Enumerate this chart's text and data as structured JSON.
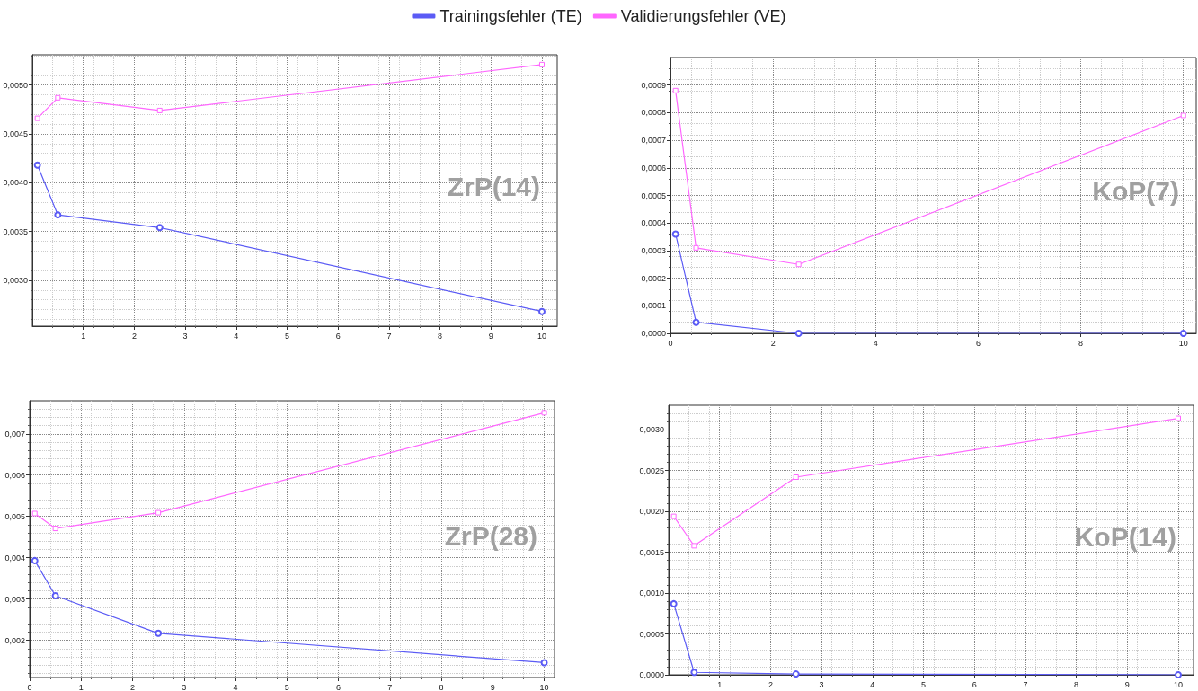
{
  "chart_data": [
    {
      "type": "line",
      "title": "ZrP(14)",
      "x": [
        0.1,
        0.5,
        2.5,
        10
      ],
      "legend": "top",
      "grid": true,
      "xlim": [
        0,
        10.3
      ],
      "xticks": [
        1,
        2,
        3,
        4,
        5,
        6,
        7,
        8,
        9,
        10
      ],
      "ylim": [
        0.00253,
        0.00531
      ],
      "yticks": [
        {
          "value": 0.003,
          "label": "0,0030"
        },
        {
          "value": 0.0035,
          "label": "0,0035"
        },
        {
          "value": 0.004,
          "label": "0,0040"
        },
        {
          "value": 0.0045,
          "label": "0,0045"
        },
        {
          "value": 0.005,
          "label": "0,0050"
        }
      ],
      "series": [
        {
          "name": "Trainingsfehler (TE)",
          "color": "#5b5bf5",
          "marker": "circle",
          "values": [
            0.00418,
            0.00367,
            0.00354,
            0.00268
          ]
        },
        {
          "name": "Validierungsfehler (VE)",
          "color": "#ff66ff",
          "marker": "square",
          "values": [
            0.00466,
            0.00487,
            0.00474,
            0.00521
          ]
        }
      ]
    },
    {
      "type": "line",
      "title": "KoP(7)",
      "x": [
        0.1,
        0.5,
        2.5,
        10
      ],
      "grid": true,
      "xlim": [
        0,
        10.25
      ],
      "xticks": [
        0,
        2,
        4,
        6,
        8,
        10
      ],
      "ylim": [
        0,
        0.001
      ],
      "yticks": [
        {
          "value": 0,
          "label": "0,0000"
        },
        {
          "value": 0.0001,
          "label": "0,0001"
        },
        {
          "value": 0.0002,
          "label": "0,0002"
        },
        {
          "value": 0.0003,
          "label": "0,0003"
        },
        {
          "value": 0.0004,
          "label": "0,0004"
        },
        {
          "value": 0.0005,
          "label": "0,0005"
        },
        {
          "value": 0.0006,
          "label": "0,0006"
        },
        {
          "value": 0.0007,
          "label": "0,0007"
        },
        {
          "value": 0.0008,
          "label": "0,0008"
        },
        {
          "value": 0.0009,
          "label": "0,0009"
        }
      ],
      "series": [
        {
          "color": "#5b5bf5",
          "marker": "circle",
          "values": [
            0.00036,
            4e-05,
            0,
            0
          ]
        },
        {
          "color": "#ff66ff",
          "marker": "square",
          "values": [
            0.00088,
            0.00031,
            0.00025,
            0.00079
          ]
        }
      ]
    },
    {
      "type": "line",
      "title": "ZrP(28)",
      "x": [
        0.1,
        0.5,
        2.5,
        10
      ],
      "grid": true,
      "xlim": [
        0,
        10.2
      ],
      "xticks": [
        0,
        1,
        2,
        3,
        4,
        5,
        6,
        7,
        8,
        9,
        10
      ],
      "ylim": [
        0.0011,
        0.0078
      ],
      "yticks": [
        {
          "value": 0.002,
          "label": "0,002"
        },
        {
          "value": 0.003,
          "label": "0,003"
        },
        {
          "value": 0.004,
          "label": "0,004"
        },
        {
          "value": 0.005,
          "label": "0,005"
        },
        {
          "value": 0.006,
          "label": "0,006"
        },
        {
          "value": 0.007,
          "label": "0,007"
        }
      ],
      "series": [
        {
          "color": "#5b5bf5",
          "marker": "circle",
          "values": [
            0.00393,
            0.00308,
            0.00217,
            0.00146
          ]
        },
        {
          "color": "#ff66ff",
          "marker": "square",
          "values": [
            0.00507,
            0.00471,
            0.00509,
            0.00751
          ]
        }
      ]
    },
    {
      "type": "line",
      "title": "KoP(14)",
      "x": [
        0.1,
        0.5,
        2.5,
        10
      ],
      "grid": true,
      "xlim": [
        0,
        10.3
      ],
      "xticks": [
        1,
        2,
        3,
        4,
        5,
        6,
        7,
        8,
        9,
        10
      ],
      "ylim": [
        0,
        0.0033
      ],
      "yticks": [
        {
          "value": 0,
          "label": "0,0000"
        },
        {
          "value": 0.0005,
          "label": "0,0005"
        },
        {
          "value": 0.001,
          "label": "0,0010"
        },
        {
          "value": 0.0015,
          "label": "0,0015"
        },
        {
          "value": 0.002,
          "label": "0,0020"
        },
        {
          "value": 0.0025,
          "label": "0,0025"
        },
        {
          "value": 0.003,
          "label": "0,0030"
        }
      ],
      "series": [
        {
          "color": "#5b5bf5",
          "marker": "circle",
          "values": [
            0.00087,
            3e-05,
            1e-05,
            0
          ]
        },
        {
          "color": "#ff66ff",
          "marker": "square",
          "values": [
            0.00194,
            0.00158,
            0.00242,
            0.00314
          ]
        }
      ]
    }
  ]
}
